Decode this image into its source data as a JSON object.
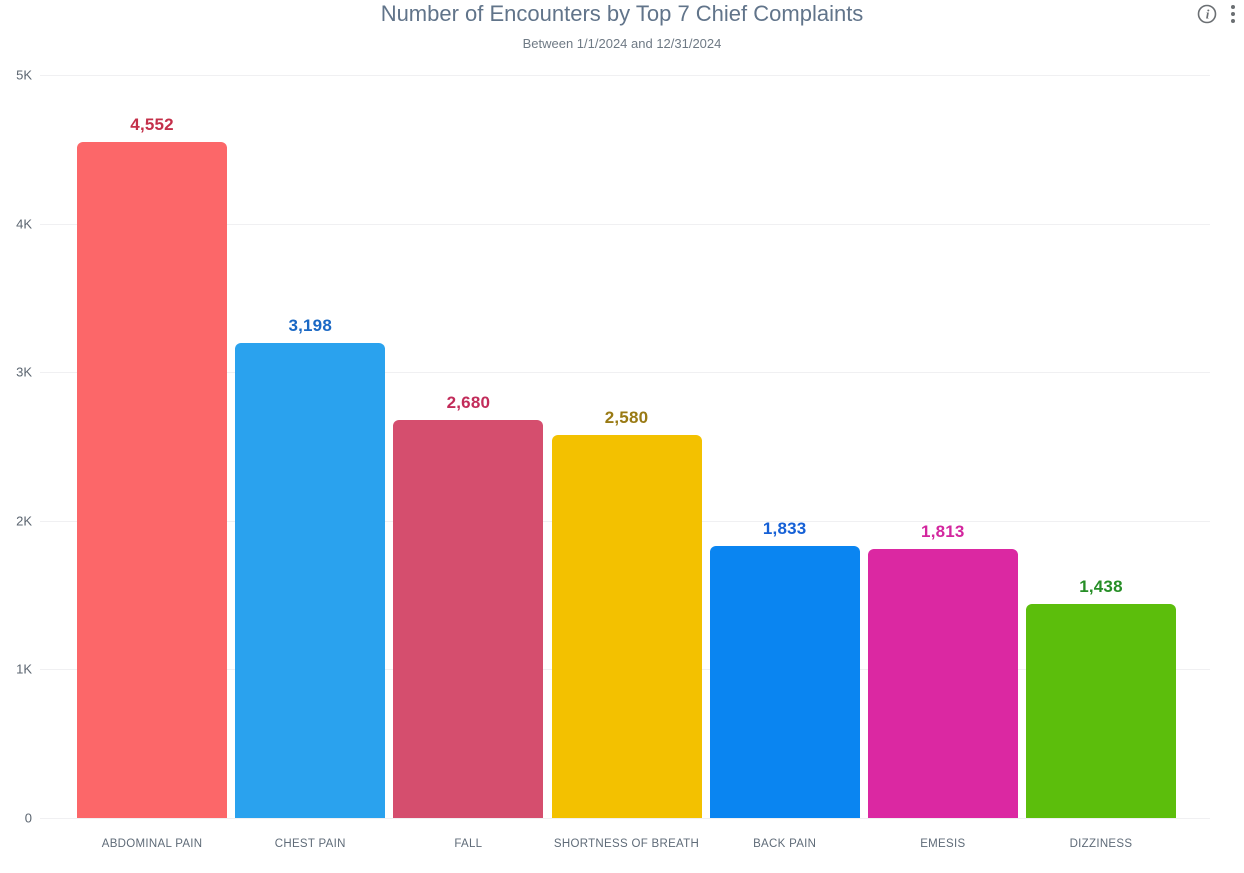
{
  "header": {
    "info_icon": "info-icon",
    "menu_icon": "kebab-menu-icon",
    "icon_color": "#6b6f73"
  },
  "chart_data": {
    "type": "bar",
    "title": "Number of Encounters by Top 7 Chief Complaints",
    "subtitle": "Between 1/1/2024 and 12/31/2024",
    "categories": [
      "ABDOMINAL PAIN",
      "CHEST PAIN",
      "FALL",
      "SHORTNESS OF BREATH",
      "BACK PAIN",
      "EMESIS",
      "DIZZINESS"
    ],
    "values": [
      4552,
      3198,
      2680,
      2580,
      1833,
      1813,
      1438
    ],
    "value_labels": [
      "4,552",
      "3,198",
      "2,680",
      "2,580",
      "1,833",
      "1,813",
      "1,438"
    ],
    "bar_colors": [
      "#fc6769",
      "#2aa2ee",
      "#d54e6e",
      "#f3c100",
      "#0a85f1",
      "#db28a2",
      "#5cbe0c"
    ],
    "value_label_colors": [
      "#c4304a",
      "#1a68c4",
      "#c22c5a",
      "#997a14",
      "#1560d6",
      "#d3269e",
      "#268e26"
    ],
    "xlabel": "",
    "ylabel": "",
    "ylim": [
      0,
      5000
    ],
    "yticks": [
      {
        "value": 0,
        "label": "0"
      },
      {
        "value": 1000,
        "label": "1K"
      },
      {
        "value": 2000,
        "label": "2K"
      },
      {
        "value": 3000,
        "label": "3K"
      },
      {
        "value": 4000,
        "label": "4K"
      },
      {
        "value": 5000,
        "label": "5K"
      }
    ],
    "grid": "horizontal",
    "gridline_color": "#f0f0f2",
    "legend": "none"
  }
}
